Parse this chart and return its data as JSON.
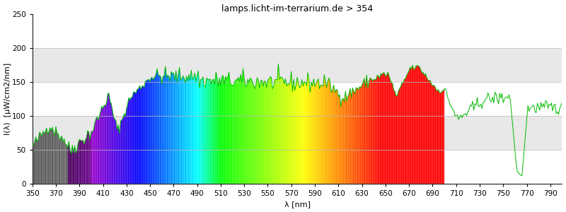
{
  "title": "lamps.licht-im-terrarium.de > 354",
  "xlabel": "λ [nm]",
  "ylabel": "I(λ)  [μW/cm2/nm]",
  "xlim": [
    350,
    800
  ],
  "ylim": [
    0,
    250
  ],
  "yticks": [
    0,
    50,
    100,
    150,
    200,
    250
  ],
  "xticks": [
    350,
    370,
    390,
    410,
    430,
    450,
    470,
    490,
    510,
    530,
    550,
    570,
    590,
    610,
    630,
    650,
    670,
    690,
    710,
    730,
    750,
    770,
    790
  ],
  "background_color": "#ffffff",
  "gray_band_color": "#e8e8e8",
  "line_color": "#00bb00",
  "title_fontsize": 9,
  "axis_label_fontsize": 8,
  "tick_fontsize": 7.5
}
